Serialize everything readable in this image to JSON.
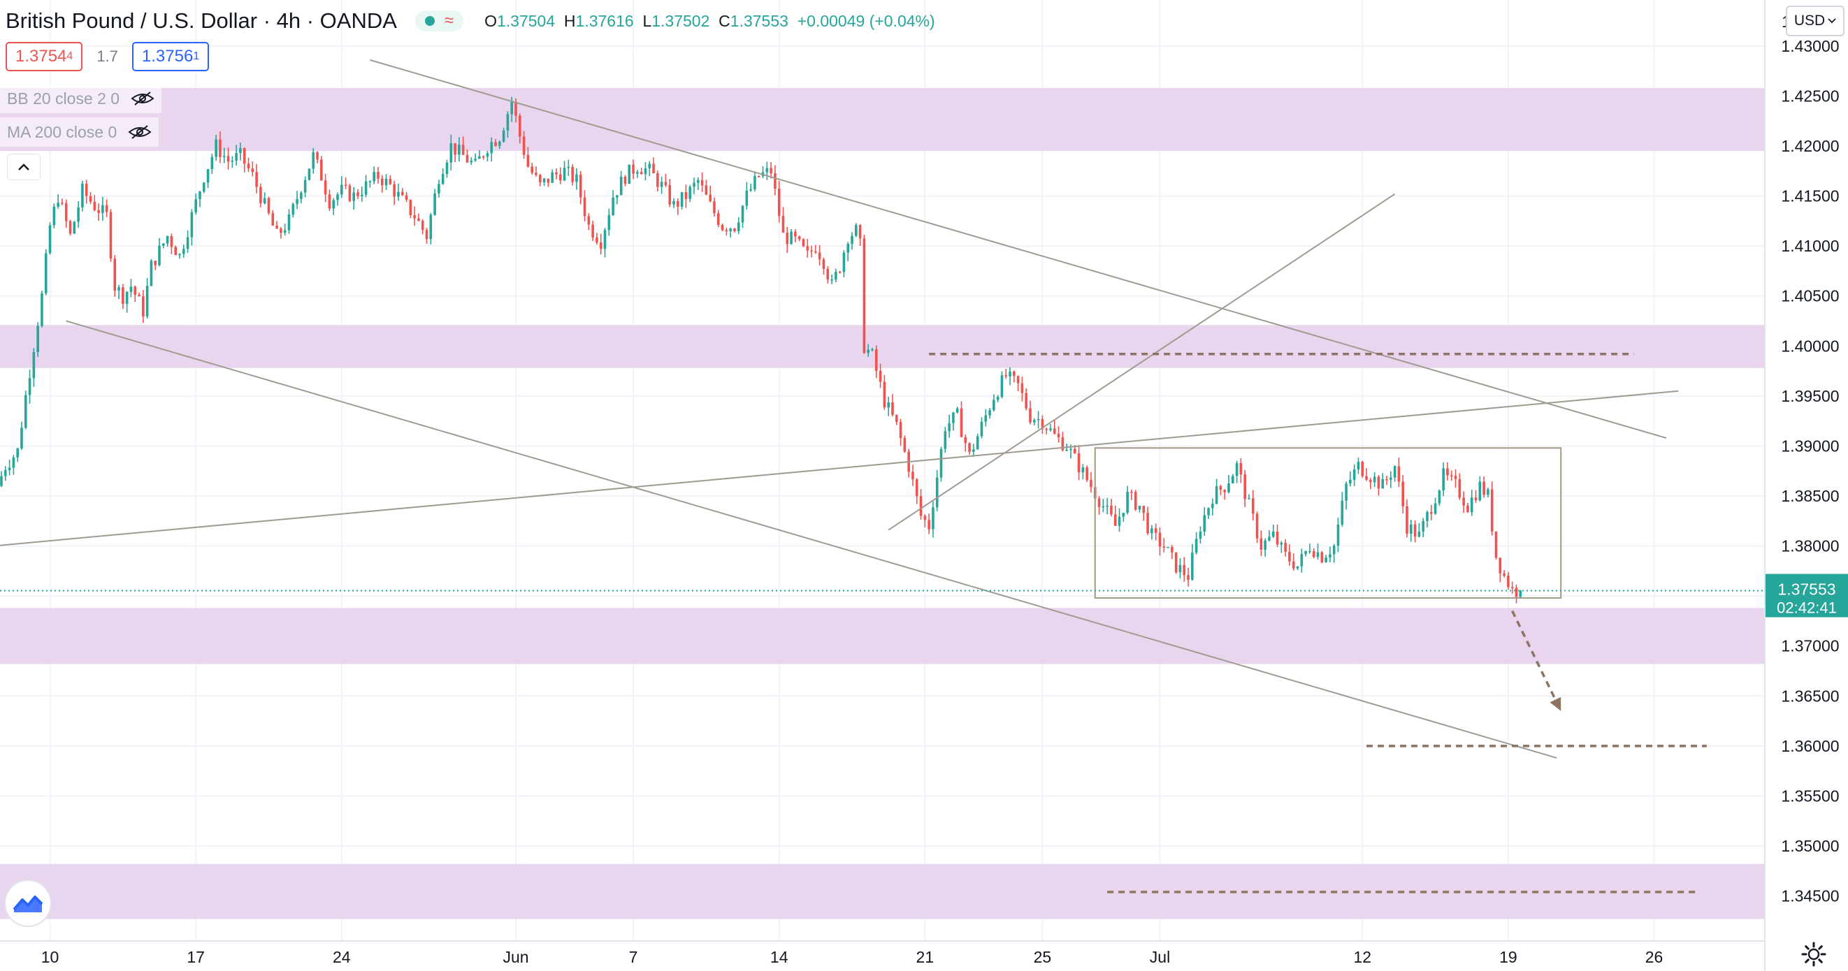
{
  "header": {
    "title": "British Pound / U.S. Dollar · 4h · OANDA",
    "ohlc": {
      "o_label": "O",
      "o": "1.37504",
      "h_label": "H",
      "h": "1.37616",
      "l_label": "L",
      "l": "1.37502",
      "c_label": "C",
      "c": "1.37553",
      "change": "+0.00049 (+0.04%)"
    },
    "status_colors": {
      "live": "#26a69a",
      "wave": "#ef5350"
    }
  },
  "quote": {
    "sell": "1.3754",
    "sell_sup": "4",
    "spread": "1.7",
    "buy": "1.3756",
    "buy_sup": "1"
  },
  "indicators": [
    {
      "label": "BB 20 close 2 0",
      "icon": "eye-hidden-icon"
    },
    {
      "label": "MA 200 close 0",
      "icon": "eye-hidden-icon"
    }
  ],
  "currency_select": "USD",
  "colors": {
    "up": "#26a69a",
    "down": "#ef5350",
    "zone": "#e7d2ec",
    "trendline": "#a09b91",
    "dashed": "#8c7460",
    "box": "#a39a85",
    "last_price": "#26a69a"
  },
  "chart_data": {
    "type": "candlestick",
    "title": "British Pound / U.S. Dollar · 4h · OANDA",
    "ylim": [
      1.3405,
      1.4346
    ],
    "y_ticks": [
      "1.34500",
      "1.35000",
      "1.35500",
      "1.36000",
      "1.36500",
      "1.37000",
      "1.37500",
      "1.38000",
      "1.38500",
      "1.39000",
      "1.39500",
      "1.40000",
      "1.40500",
      "1.41000",
      "1.41500",
      "1.42000",
      "1.42500",
      "1.43000"
    ],
    "y_tick_top_partial": "1",
    "x_ticks": [
      {
        "label": "10",
        "bar": 12
      },
      {
        "label": "17",
        "bar": 48
      },
      {
        "label": "24",
        "bar": 84
      },
      {
        "label": "Jun",
        "bar": 127
      },
      {
        "label": "7",
        "bar": 156
      },
      {
        "label": "14",
        "bar": 192
      },
      {
        "label": "21",
        "bar": 228
      },
      {
        "label": "25",
        "bar": 257
      },
      {
        "label": "Jul",
        "bar": 286
      },
      {
        "label": "12",
        "bar": 336
      },
      {
        "label": "19",
        "bar": 372
      },
      {
        "label": "26",
        "bar": 408
      }
    ],
    "bar_count": 435,
    "last_price": "1.37553",
    "countdown": "02:42:41",
    "anchors": [
      [
        0,
        1.386
      ],
      [
        2,
        1.388
      ],
      [
        5,
        1.3895
      ],
      [
        7,
        1.395
      ],
      [
        9,
        1.4
      ],
      [
        11,
        1.405
      ],
      [
        13,
        1.412
      ],
      [
        15,
        1.415
      ],
      [
        18,
        1.411
      ],
      [
        21,
        1.4155
      ],
      [
        24,
        1.414
      ],
      [
        27,
        1.413
      ],
      [
        29,
        1.406
      ],
      [
        31,
        1.405
      ],
      [
        33,
        1.406
      ],
      [
        36,
        1.4035
      ],
      [
        38,
        1.408
      ],
      [
        42,
        1.411
      ],
      [
        45,
        1.409
      ],
      [
        48,
        1.413
      ],
      [
        51,
        1.417
      ],
      [
        54,
        1.42
      ],
      [
        57,
        1.4185
      ],
      [
        60,
        1.419
      ],
      [
        63,
        1.417
      ],
      [
        66,
        1.414
      ],
      [
        69,
        1.411
      ],
      [
        72,
        1.4125
      ],
      [
        75,
        1.416
      ],
      [
        78,
        1.419
      ],
      [
        80,
        1.417
      ],
      [
        82,
        1.4145
      ],
      [
        85,
        1.4155
      ],
      [
        88,
        1.415
      ],
      [
        91,
        1.416
      ],
      [
        94,
        1.417
      ],
      [
        97,
        1.416
      ],
      [
        100,
        1.4145
      ],
      [
        103,
        1.413
      ],
      [
        106,
        1.411
      ],
      [
        109,
        1.417
      ],
      [
        112,
        1.42
      ],
      [
        115,
        1.419
      ],
      [
        118,
        1.418
      ],
      [
        121,
        1.42
      ],
      [
        124,
        1.421
      ],
      [
        127,
        1.4245
      ],
      [
        129,
        1.421
      ],
      [
        131,
        1.418
      ],
      [
        134,
        1.416
      ],
      [
        137,
        1.417
      ],
      [
        140,
        1.4175
      ],
      [
        143,
        1.4165
      ],
      [
        146,
        1.412
      ],
      [
        149,
        1.4105
      ],
      [
        152,
        1.415
      ],
      [
        155,
        1.417
      ],
      [
        158,
        1.418
      ],
      [
        161,
        1.4175
      ],
      [
        164,
        1.416
      ],
      [
        167,
        1.414
      ],
      [
        170,
        1.415
      ],
      [
        173,
        1.4165
      ],
      [
        176,
        1.414
      ],
      [
        179,
        1.412
      ],
      [
        182,
        1.412
      ],
      [
        185,
        1.415
      ],
      [
        188,
        1.417
      ],
      [
        191,
        1.4175
      ],
      [
        194,
        1.411
      ],
      [
        197,
        1.4105
      ],
      [
        200,
        1.409
      ],
      [
        202,
        1.41
      ],
      [
        204,
        1.4085
      ],
      [
        206,
        1.406
      ],
      [
        208,
        1.408
      ],
      [
        210,
        1.411
      ],
      [
        212,
        1.4115
      ],
      [
        213,
        1.41
      ],
      [
        214,
        1.4
      ],
      [
        216,
        1.399
      ],
      [
        219,
        1.3945
      ],
      [
        222,
        1.392
      ],
      [
        225,
        1.388
      ],
      [
        228,
        1.383
      ],
      [
        230,
        1.382
      ],
      [
        232,
        1.387
      ],
      [
        234,
        1.392
      ],
      [
        237,
        1.393
      ],
      [
        240,
        1.389
      ],
      [
        243,
        1.392
      ],
      [
        246,
        1.395
      ],
      [
        249,
        1.397
      ],
      [
        252,
        1.396
      ],
      [
        255,
        1.393
      ],
      [
        258,
        1.3925
      ],
      [
        261,
        1.391
      ],
      [
        264,
        1.39
      ],
      [
        267,
        1.388
      ],
      [
        270,
        1.386
      ],
      [
        273,
        1.384
      ],
      [
        276,
        1.382
      ],
      [
        279,
        1.385
      ],
      [
        282,
        1.384
      ],
      [
        285,
        1.381
      ],
      [
        288,
        1.38
      ],
      [
        291,
        1.378
      ],
      [
        294,
        1.377
      ],
      [
        297,
        1.382
      ],
      [
        300,
        1.385
      ],
      [
        303,
        1.386
      ],
      [
        306,
        1.388
      ],
      [
        309,
        1.384
      ],
      [
        312,
        1.38
      ],
      [
        315,
        1.381
      ],
      [
        318,
        1.379
      ],
      [
        321,
        1.378
      ],
      [
        324,
        1.38
      ],
      [
        327,
        1.379
      ],
      [
        330,
        1.38
      ],
      [
        333,
        1.386
      ],
      [
        336,
        1.388
      ],
      [
        339,
        1.387
      ],
      [
        342,
        1.386
      ],
      [
        345,
        1.388
      ],
      [
        348,
        1.382
      ],
      [
        351,
        1.381
      ],
      [
        354,
        1.384
      ],
      [
        357,
        1.387
      ],
      [
        360,
        1.386
      ],
      [
        363,
        1.384
      ],
      [
        366,
        1.386
      ],
      [
        368,
        1.385
      ],
      [
        370,
        1.379
      ],
      [
        372,
        1.377
      ],
      [
        374,
        1.3756
      ],
      [
        375,
        1.37553
      ]
    ],
    "zones": [
      [
        1.4195,
        1.4258
      ],
      [
        1.3978,
        1.4021
      ],
      [
        1.3682,
        1.3738
      ],
      [
        1.3427,
        1.3482
      ]
    ],
    "trendlines": [
      [
        [
          -2,
          1.38
        ],
        [
          414,
          1.3955
        ]
      ],
      [
        [
          91,
          1.4286
        ],
        [
          411,
          1.3908
        ]
      ],
      [
        [
          16,
          1.4025
        ],
        [
          384,
          1.3588
        ]
      ],
      [
        [
          219,
          1.3816
        ],
        [
          344,
          1.4152
        ]
      ]
    ],
    "dashed_levels": [
      [
        229,
        403,
        1.3992
      ],
      [
        337,
        421,
        1.36
      ],
      [
        273,
        419,
        1.3454
      ]
    ],
    "range_box": [
      270,
      385,
      1.3748,
      1.3898
    ],
    "projection_arrow": [
      [
        373,
        1.3735
      ],
      [
        385,
        1.3635
      ]
    ]
  }
}
